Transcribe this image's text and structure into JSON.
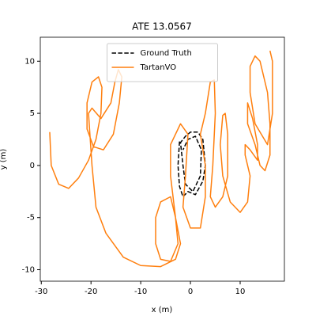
{
  "chart_data": {
    "type": "line",
    "title": "ATE 13.0567",
    "xlabel": "x (m)",
    "ylabel": "y (m)",
    "xlim": [
      -30.2,
      18.9
    ],
    "ylim": [
      -11.1,
      12.3
    ],
    "xticks": [
      -30,
      -20,
      -10,
      0,
      10
    ],
    "yticks": [
      -10,
      -5,
      0,
      5,
      10
    ],
    "legend": "upper center",
    "series": [
      {
        "name": "Ground Truth",
        "color": "#000000",
        "dashed": true,
        "x": [
          -2.2,
          -2.5,
          -2.2,
          -1.5,
          -0.5,
          1,
          2.5,
          3,
          2.5,
          1.5,
          0,
          -1,
          -2,
          -1.5,
          -1,
          0.5,
          2,
          2.2,
          1,
          -0.5,
          -1.5
        ],
        "y": [
          2.3,
          0,
          -2,
          -3,
          -2.5,
          -2.8,
          -1.5,
          0,
          2.5,
          3.2,
          3.2,
          2.8,
          2.2,
          0,
          -1.8,
          -2.5,
          -1,
          1.5,
          2.8,
          2.5,
          1.5
        ]
      },
      {
        "name": "TartanVO",
        "color": "#ff7f0e",
        "dashed": false,
        "x": [
          -28.3,
          -28,
          -26.5,
          -24.5,
          -22.5,
          -20.5,
          -19,
          -18,
          -17.8,
          -18.5,
          -19.8,
          -20.8,
          -20.8,
          -19.5,
          -17.5,
          -15.5,
          -14.3,
          -13.8,
          -14.5,
          -15.2,
          -16,
          -18,
          -19.8,
          -20.5,
          -19.8,
          -19,
          -17,
          -13.5,
          -10,
          -6,
          -3,
          -2,
          -3,
          -4,
          -6,
          -7,
          -7,
          -6,
          -4,
          -2.5,
          -3,
          -4,
          -4,
          -2,
          -0.5,
          -1,
          -1.5,
          0,
          2,
          3,
          3,
          2,
          3,
          4,
          4.8,
          5,
          4.5,
          4,
          5,
          6.5,
          7.5,
          7.5,
          7,
          6.5,
          6,
          6.5,
          8,
          10,
          11.5,
          12,
          11,
          11,
          12,
          13.5,
          13.5,
          12.5,
          11.5,
          11.5,
          13,
          14,
          15,
          16,
          16,
          15.5,
          14,
          13,
          12,
          12,
          13,
          15.5,
          16.5,
          16.5,
          16
        ],
        "y": [
          3.2,
          0,
          -1.8,
          -2.2,
          -1.2,
          0.5,
          2.5,
          5,
          7.5,
          8.5,
          8,
          6,
          3.5,
          1.8,
          1.5,
          3,
          6,
          8.5,
          9.2,
          8,
          6,
          4.5,
          5.5,
          5,
          0,
          -4,
          -6.5,
          -8.8,
          -9.6,
          -9.7,
          -9,
          -7.5,
          -5,
          -3,
          -3.5,
          -5,
          -7.5,
          -9,
          -9.2,
          -7.5,
          -5,
          -1,
          2,
          4,
          3,
          -1,
          -4,
          -6,
          -6,
          -3,
          0,
          3,
          5,
          8,
          8.2,
          5,
          0,
          -3,
          -4,
          -3,
          -1,
          3,
          5,
          4.8,
          2,
          -1,
          -3.5,
          -4.5,
          -3.5,
          -1,
          1,
          2,
          1.5,
          0.5,
          2,
          4.5,
          6,
          4,
          2,
          0,
          -0.5,
          1,
          4,
          7,
          10,
          10.5,
          9.5,
          7,
          4,
          2,
          5,
          10,
          11
        ]
      }
    ]
  }
}
